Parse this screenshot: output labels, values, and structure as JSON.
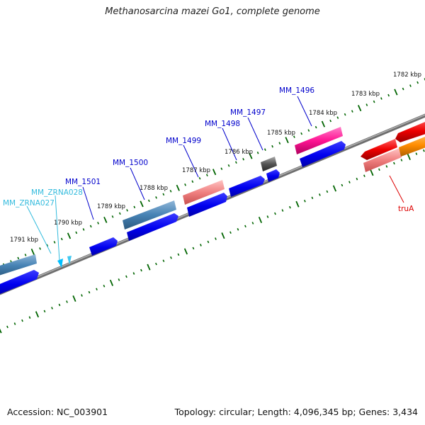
{
  "title": "Methanosarcina mazei Go1, complete genome",
  "footer": {
    "accession": "Accession: NC_003901",
    "topology": "Topology: circular; Length: 4,096,345 bp; Genes: 3,434"
  },
  "ruler": {
    "labels": [
      "1782 kbp",
      "1783 kbp",
      "1784 kbp",
      "1785 kbp",
      "1786 kbp",
      "1787 kbp",
      "1788 kbp",
      "1789 kbp",
      "1790 kbp",
      "1791 kbp"
    ]
  },
  "colors": {
    "blue": "#0000ee",
    "steel": "#4682b4",
    "salmon": "#f08080",
    "pink": "#ff1493",
    "gray": "#555555",
    "red": "#ee0000",
    "orange": "#ff8c00",
    "cyan": "#00bfff",
    "tick": "#006400",
    "backbone": "#808080"
  },
  "labels": [
    {
      "text": "MM_1496",
      "color": "#0000cc"
    },
    {
      "text": "MM_1497",
      "color": "#0000cc"
    },
    {
      "text": "MM_1498",
      "color": "#0000cc"
    },
    {
      "text": "MM_1499",
      "color": "#0000cc"
    },
    {
      "text": "MM_1500",
      "color": "#0000cc"
    },
    {
      "text": "MM_1501",
      "color": "#0000cc"
    },
    {
      "text": "MM_ZRNA028",
      "color": "#33bbdd"
    },
    {
      "text": "MM_ZRNA027",
      "color": "#33bbdd"
    },
    {
      "text": "truA",
      "color": "#dd0000"
    }
  ]
}
